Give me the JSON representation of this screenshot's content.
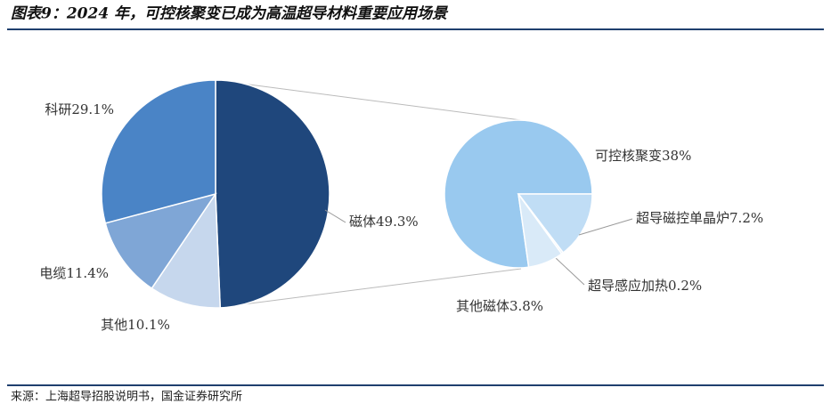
{
  "chart_data": {
    "type": "pie_of_pie",
    "title": "图表9：2024 年，可控核聚变已成为高温超导材料重要应用场景",
    "source": "来源：上海超导招股说明书，国金证券研究所",
    "pies": [
      {
        "categories": [
          "磁体",
          "其他",
          "电缆",
          "科研"
        ],
        "values": [
          49.3,
          10.1,
          11.4,
          29.1
        ],
        "value_labels": [
          "49.3%",
          "10.1%",
          "11.4%",
          "29.1%"
        ],
        "colors": [
          "#1f477c",
          "#c6d7ed",
          "#7fa6d6",
          "#4a84c6"
        ]
      },
      {
        "categories": [
          "可控核聚变",
          "超导磁控单晶炉",
          "超导感应加热",
          "其他磁体"
        ],
        "values": [
          38,
          7.2,
          0.2,
          3.8
        ],
        "value_labels": [
          "38%",
          "7.2%",
          "0.2%",
          "3.8%"
        ],
        "colors": [
          "#99c9ef",
          "#c0ddf5",
          "#e0eefa",
          "#d9eaf8"
        ]
      }
    ]
  }
}
